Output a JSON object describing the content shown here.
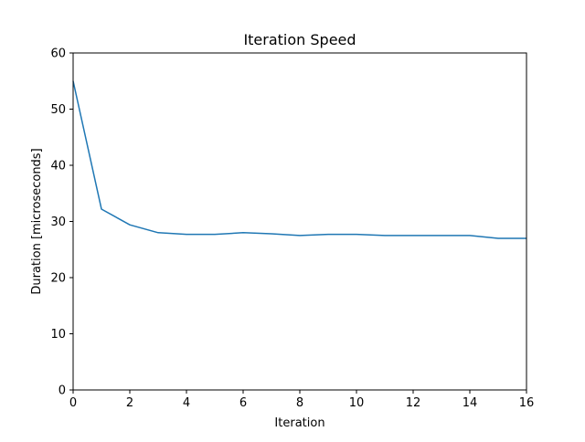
{
  "colors": {
    "series_line": "#1f77b4",
    "axes": "#000000",
    "background": "#ffffff"
  },
  "chart_data": {
    "type": "line",
    "title": "Iteration Speed",
    "xlabel": "Iteration",
    "ylabel": "Duration [microseconds]",
    "xlim": [
      0,
      16
    ],
    "ylim": [
      0,
      60
    ],
    "xticks": [
      0,
      2,
      4,
      6,
      8,
      10,
      12,
      14,
      16
    ],
    "yticks": [
      0,
      10,
      20,
      30,
      40,
      50,
      60
    ],
    "grid": false,
    "legend": "none",
    "series": [
      {
        "x": [
          0,
          1,
          2,
          3,
          4,
          5,
          6,
          7,
          8,
          9,
          10,
          11,
          12,
          13,
          14,
          15,
          16
        ],
        "values": [
          55,
          32.2,
          29.4,
          28.0,
          27.7,
          27.7,
          28.0,
          27.8,
          27.5,
          27.7,
          27.7,
          27.5,
          27.5,
          27.5,
          27.5,
          27.0,
          27.0
        ]
      }
    ]
  }
}
